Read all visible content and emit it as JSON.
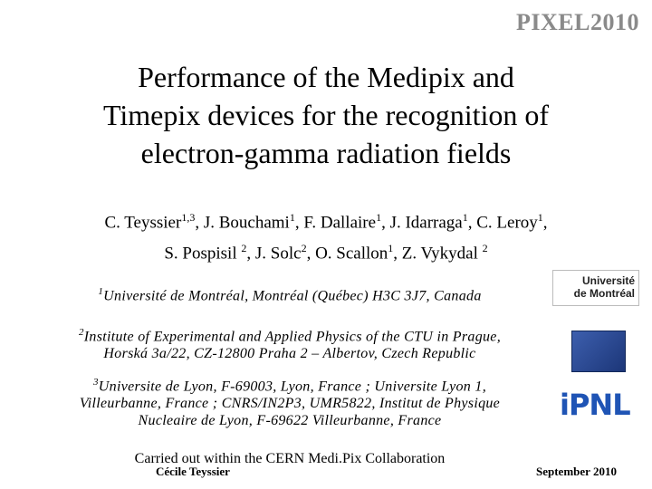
{
  "header": {
    "conference": "PIXEL2010"
  },
  "title": {
    "lines": [
      "Performance of the Medipix and",
      "Timepix devices for the recognition of",
      "electron-gamma radiation fields"
    ]
  },
  "authors": {
    "lines": [
      [
        {
          "name": "C. Teyssier",
          "sup": "1,3"
        },
        {
          "name": ", J. Bouchami",
          "sup": "1"
        },
        {
          "name": ", F. Dallaire",
          "sup": "1"
        },
        {
          "name": ", J. Idarraga",
          "sup": "1"
        },
        {
          "name": ", C. Leroy",
          "sup": "1",
          "after": ","
        }
      ],
      [
        {
          "name": "S. Pospisil ",
          "sup": "2"
        },
        {
          "name": ", J. Solc",
          "sup": "2"
        },
        {
          "name": ", O. Scallon",
          "sup": "1"
        },
        {
          "name": ", Z. Vykydal ",
          "sup": "2"
        }
      ]
    ]
  },
  "affiliations": [
    {
      "sup": "1",
      "lines": [
        "Université de Montréal, Montréal (Québec) H3C 3J7, Canada"
      ]
    },
    {
      "sup": "2",
      "lines": [
        "Institute of Experimental and Applied Physics of the CTU in Prague,",
        "Horská 3a/22, CZ-12800 Praha 2 – Albertov, Czech Republic"
      ]
    },
    {
      "sup": "3",
      "lines": [
        "Universite de Lyon, F-69003, Lyon, France ; Universite Lyon 1,",
        "Villeurbanne, France ; CNRS/IN2P3, UMR5822, Institut de Physique",
        "Nucleaire de Lyon, F-69622 Villeurbanne, France"
      ]
    }
  ],
  "logos": {
    "udem": [
      "Université",
      "de Montréal"
    ],
    "ipnl": "iPNL"
  },
  "footer": {
    "collaboration": "Carried out within the CERN Medi.Pix Collaboration",
    "presenter": "Cécile Teyssier",
    "date": "September 2010"
  }
}
